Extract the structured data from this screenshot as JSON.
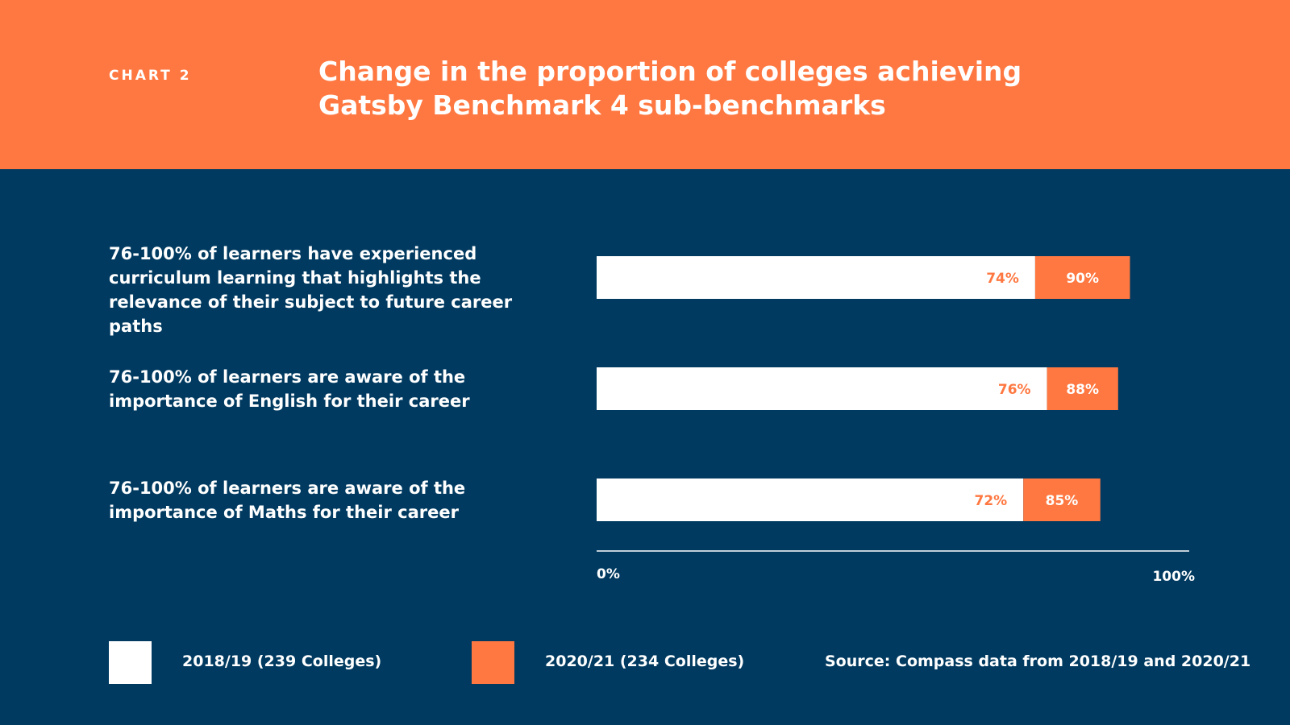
{
  "header": {
    "chart_label": "CHART 2",
    "title_line1": "Change in the proportion of colleges achieving",
    "title_line2": "Gatsby Benchmark 4 sub-benchmarks"
  },
  "colors": {
    "header_bg": "#ff7841",
    "background": "#003a60",
    "series_2018": "#ffffff",
    "series_2020": "#ff7841"
  },
  "chart_data": {
    "type": "bar",
    "orientation": "horizontal",
    "categories": [
      [
        "76-100% of learners have experienced",
        "curriculum learning that highlights the",
        "relevance of their subject to future career paths"
      ],
      [
        "76-100% of learners are aware of the",
        "importance of English for their career"
      ],
      [
        "76-100% of learners are aware of the",
        "importance of Maths for their career"
      ]
    ],
    "series": [
      {
        "name": "2018/19 (239 Colleges)",
        "values": [
          74,
          76,
          72
        ],
        "labels": [
          "74%",
          "76%",
          "72%"
        ]
      },
      {
        "name": "2020/21 (234 Colleges)",
        "values": [
          90,
          88,
          85
        ],
        "labels": [
          "90%",
          "88%",
          "85%"
        ]
      }
    ],
    "xlim": [
      0,
      100
    ],
    "tick_labels": [
      "0%",
      "100%"
    ],
    "grid": false,
    "legend": "bottom"
  },
  "source": "Source: Compass data from 2018/19 and 2020/21"
}
